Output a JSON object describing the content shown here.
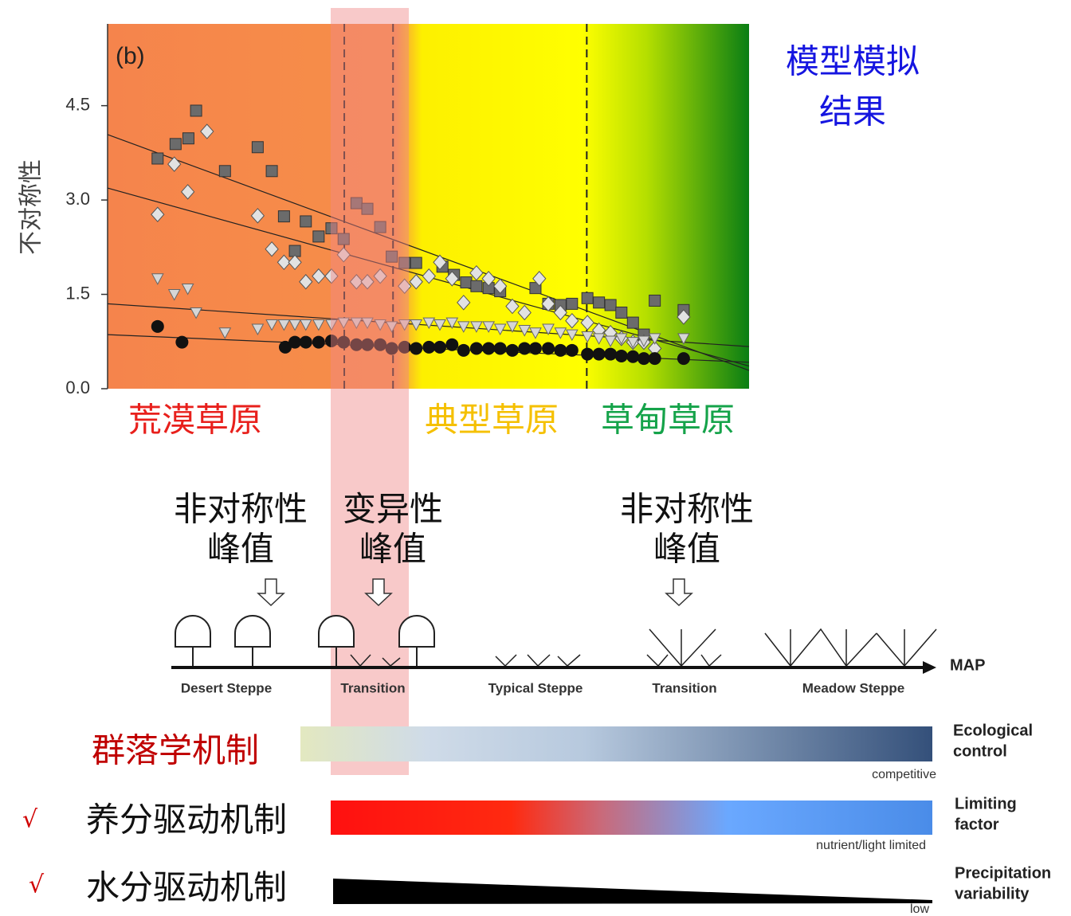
{
  "chart_data": {
    "type": "scatter",
    "panel_label": "(b)",
    "y_label": "不对称性",
    "xlim": [
      0,
      100
    ],
    "ylim": [
      0,
      5.8
    ],
    "yticks": [
      {
        "value": 0,
        "label": "0.0"
      },
      {
        "value": 1.5,
        "label": "1.5"
      },
      {
        "value": 3,
        "label": "3.0"
      },
      {
        "value": 4.5,
        "label": "4.5"
      }
    ],
    "vlines": [
      36.9,
      44.5,
      74.7
    ],
    "series": [
      {
        "marker": "square",
        "color": "#6b6b6b",
        "fit": [
          4.04,
          0.29
        ],
        "x": [
          7.8,
          10.6,
          12.6,
          13.8,
          18.3,
          23.4,
          25.6,
          27.5,
          29.2,
          30.9,
          32.9,
          34.9,
          36.8,
          38.8,
          40.5,
          42.5,
          44.3,
          46.3,
          48.1,
          52.2,
          54.0,
          55.9,
          57.5,
          59.4,
          61.2,
          66.7,
          68.7,
          70.6,
          72.4,
          74.8,
          76.6,
          78.4,
          80.1,
          81.9,
          83.6,
          85.3,
          89.8
        ],
        "values": [
          3.66,
          3.89,
          3.98,
          4.42,
          3.46,
          3.84,
          3.46,
          2.74,
          2.19,
          2.66,
          2.42,
          2.55,
          2.38,
          2.95,
          2.86,
          2.57,
          2.1,
          2.0,
          2.0,
          1.94,
          1.81,
          1.69,
          1.63,
          1.6,
          1.55,
          1.6,
          1.35,
          1.33,
          1.35,
          1.44,
          1.37,
          1.33,
          1.21,
          1.05,
          0.86,
          1.4,
          1.25
        ]
      },
      {
        "marker": "diamond",
        "color": "#e2e2e2",
        "fit": [
          3.19,
          0.36
        ],
        "x": [
          7.8,
          10.4,
          12.5,
          15.5,
          23.4,
          25.6,
          27.5,
          29.2,
          30.9,
          32.9,
          34.9,
          36.8,
          38.8,
          40.5,
          42.5,
          46.3,
          48.1,
          50.1,
          51.8,
          53.7,
          55.5,
          57.5,
          59.4,
          61.2,
          63.1,
          65.0,
          67.3,
          68.7,
          70.6,
          72.4,
          74.8,
          76.6,
          78.4,
          80.1,
          81.9,
          83.6,
          85.3,
          89.8
        ],
        "values": [
          2.77,
          3.57,
          3.13,
          4.09,
          2.75,
          2.22,
          2.01,
          2.01,
          1.7,
          1.79,
          1.79,
          2.13,
          1.7,
          1.7,
          1.79,
          1.63,
          1.7,
          1.79,
          2.01,
          1.75,
          1.37,
          1.84,
          1.75,
          1.63,
          1.31,
          1.21,
          1.75,
          1.35,
          1.21,
          1.08,
          1.05,
          0.93,
          0.89,
          0.8,
          0.74,
          0.74,
          0.64,
          1.14
        ]
      },
      {
        "marker": "triangle",
        "color": "#d6d6d6",
        "fit": [
          1.35,
          0.67
        ],
        "x": [
          7.8,
          10.4,
          12.5,
          13.8,
          18.3,
          23.4,
          25.6,
          27.5,
          29.2,
          30.9,
          32.9,
          34.9,
          36.8,
          38.8,
          40.5,
          42.5,
          44.3,
          46.3,
          48.1,
          50.1,
          51.8,
          53.7,
          55.5,
          57.5,
          59.4,
          61.2,
          63.1,
          65.0,
          66.7,
          68.7,
          70.6,
          72.4,
          74.8,
          76.6,
          78.4,
          80.1,
          81.9,
          83.6,
          85.3,
          89.8
        ],
        "values": [
          1.75,
          1.5,
          1.59,
          1.21,
          0.89,
          0.95,
          1.02,
          1.02,
          1.02,
          1.02,
          1.02,
          1.02,
          1.05,
          1.05,
          1.05,
          1.02,
          0.99,
          1.02,
          1.02,
          1.05,
          1.02,
          1.05,
          0.99,
          0.99,
          0.99,
          0.95,
          0.99,
          0.93,
          0.89,
          0.95,
          0.89,
          0.86,
          0.83,
          0.8,
          0.76,
          0.8,
          0.74,
          0.76,
          0.8,
          0.8
        ]
      },
      {
        "marker": "circle",
        "color": "#111111",
        "fit": [
          0.86,
          0.42
        ],
        "x": [
          7.8,
          11.6,
          27.7,
          29.2,
          30.9,
          32.9,
          34.9,
          36.8,
          38.8,
          40.5,
          42.5,
          44.3,
          46.3,
          48.1,
          50.1,
          51.8,
          53.7,
          55.5,
          57.5,
          59.4,
          61.2,
          63.1,
          65.0,
          66.7,
          68.7,
          70.6,
          72.4,
          74.8,
          76.6,
          78.4,
          80.1,
          81.9,
          83.6,
          85.3,
          89.8
        ],
        "values": [
          0.99,
          0.74,
          0.66,
          0.74,
          0.74,
          0.74,
          0.76,
          0.74,
          0.7,
          0.7,
          0.7,
          0.64,
          0.66,
          0.64,
          0.66,
          0.66,
          0.7,
          0.61,
          0.64,
          0.64,
          0.64,
          0.61,
          0.64,
          0.64,
          0.64,
          0.61,
          0.61,
          0.55,
          0.55,
          0.55,
          0.52,
          0.51,
          0.48,
          0.48,
          0.48
        ]
      }
    ]
  },
  "model_note": [
    "模型模拟",
    "结果"
  ],
  "zones": [
    "荒漠草原",
    "典型草原",
    "草甸草原"
  ],
  "peaks": [
    [
      "非对称性",
      "峰值"
    ],
    [
      "变异性",
      "峰值"
    ],
    [
      "非对称性",
      "峰值"
    ]
  ],
  "diagram": {
    "axis_label": "MAP",
    "zones": [
      "Desert Steppe",
      "Transition",
      "Typical Steppe",
      "Transition",
      "Meadow Steppe"
    ]
  },
  "gradients": [
    {
      "title": [
        "Ecological",
        "control"
      ],
      "end_label": "competitive"
    },
    {
      "title": [
        "Limiting",
        "factor"
      ],
      "end_label": "nutrient/light limited"
    },
    {
      "title": [
        "Precipitation",
        "variability"
      ],
      "end_label": "low"
    }
  ],
  "mechanisms": [
    {
      "label": "群落学机制"
    },
    {
      "label": "养分驱动机制",
      "check": "√"
    },
    {
      "label": "水分驱动机制",
      "check": "√"
    }
  ]
}
